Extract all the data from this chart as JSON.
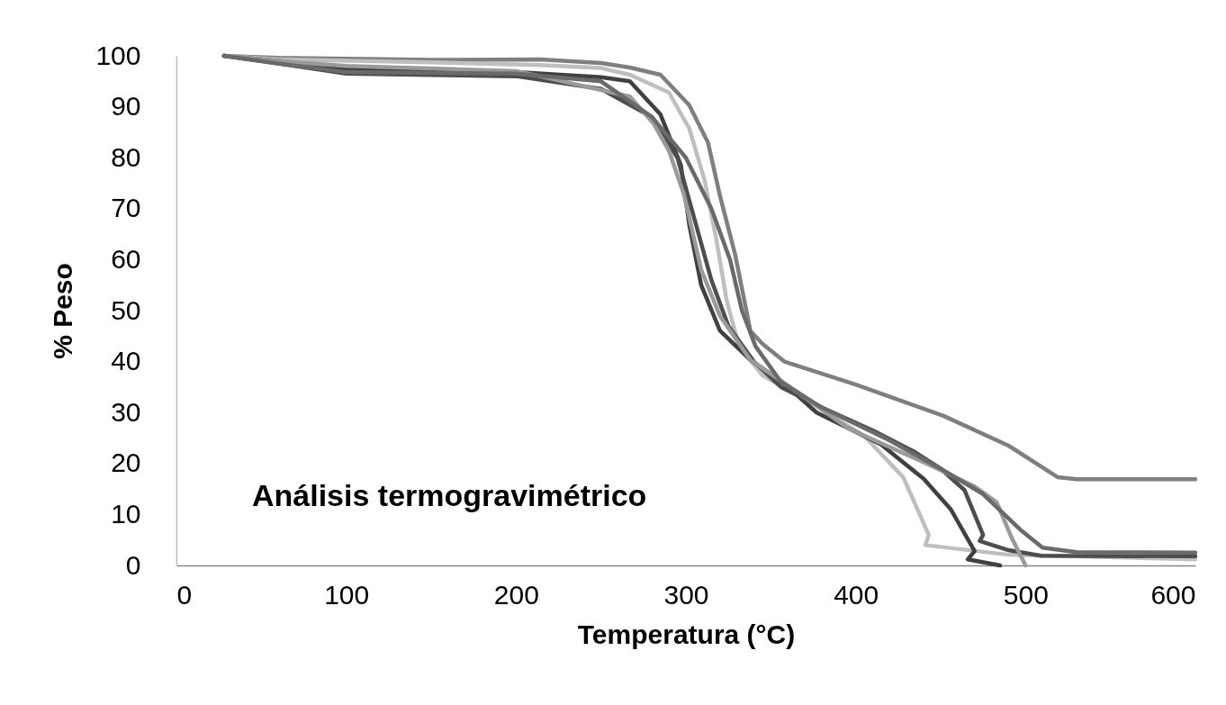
{
  "chart_data": {
    "type": "line",
    "title": "Análisis termogravimétrico",
    "xlabel": "Temperatura (°C)",
    "ylabel": "% Peso",
    "xlim": [
      0,
      600
    ],
    "ylim": [
      0,
      100
    ],
    "xticks": [
      0,
      100,
      200,
      300,
      400,
      500,
      600
    ],
    "yticks": [
      0,
      10,
      20,
      30,
      40,
      50,
      60,
      70,
      80,
      90,
      100
    ],
    "grid": false,
    "legend": false,
    "marker": "none",
    "line_style": "solid",
    "series": [
      {
        "color": "#7f7f7f",
        "x": [
          28,
          60,
          150,
          214,
          250,
          267,
          285,
          302,
          313,
          320,
          329,
          338,
          345,
          358,
          400,
          452,
          490,
          519,
          530,
          600
        ],
        "values": [
          100,
          99.6,
          99.2,
          99.3,
          98.6,
          97.7,
          96.3,
          90.3,
          83,
          72.6,
          61,
          46,
          43.5,
          40,
          35.5,
          29.3,
          23.5,
          17.3,
          16.9,
          16.9
        ]
      },
      {
        "color": "#bfbfbf",
        "x": [
          28,
          60,
          150,
          214,
          250,
          267,
          290,
          302,
          311,
          318,
          324,
          331,
          345,
          377,
          405,
          428,
          443,
          441,
          490,
          600
        ],
        "values": [
          100,
          99.3,
          98.7,
          98.2,
          97.6,
          96.3,
          92.8,
          85.7,
          75.6,
          63.8,
          52,
          43.3,
          37.3,
          31.3,
          25.4,
          17.3,
          6,
          4,
          2.1,
          1.2
        ]
      },
      {
        "color": "#404040",
        "x": [
          28,
          60,
          100,
          200,
          250,
          267,
          285,
          297,
          302,
          309,
          320,
          338,
          356,
          377,
          415,
          440,
          456,
          470,
          466,
          485
        ],
        "values": [
          100,
          99,
          97.5,
          96.8,
          95.8,
          95,
          88.5,
          78.6,
          66.8,
          55,
          46.1,
          40.3,
          36.2,
          30,
          23.7,
          17,
          11,
          2.8,
          1.2,
          0
        ]
      },
      {
        "color": "#4d4d4d",
        "x": [
          28,
          60,
          100,
          200,
          250,
          280,
          295,
          305,
          315,
          325,
          340,
          356,
          380,
          410,
          434,
          450,
          464,
          475,
          473,
          490,
          509,
          600
        ],
        "values": [
          100,
          98.5,
          96.5,
          96,
          93.5,
          88,
          80,
          68,
          56,
          47,
          40,
          35,
          31,
          26.5,
          22.4,
          19,
          14.8,
          6,
          4.8,
          3,
          1.9,
          1.8
        ]
      },
      {
        "color": "#9a9a9a",
        "x": [
          28,
          60,
          100,
          200,
          214,
          267,
          281,
          290,
          299,
          309,
          320,
          338,
          364,
          396,
          443,
          470,
          483,
          492,
          500
        ],
        "values": [
          100,
          99,
          98,
          97,
          96,
          92,
          86.7,
          81.4,
          72.6,
          58,
          49,
          40.3,
          34.4,
          26.8,
          19.8,
          15.5,
          12.4,
          5.3,
          0
        ]
      },
      {
        "color": "#6a6a6a",
        "x": [
          28,
          60,
          100,
          200,
          250,
          280,
          300,
          315,
          326,
          333,
          341,
          356,
          380,
          420,
          450,
          475,
          497,
          510,
          530,
          600
        ],
        "values": [
          100,
          98.5,
          96.8,
          96.5,
          95,
          88,
          80,
          70,
          60,
          50,
          43,
          36,
          31,
          24.5,
          19,
          14,
          7,
          3.5,
          2.6,
          2.5
        ]
      }
    ]
  }
}
